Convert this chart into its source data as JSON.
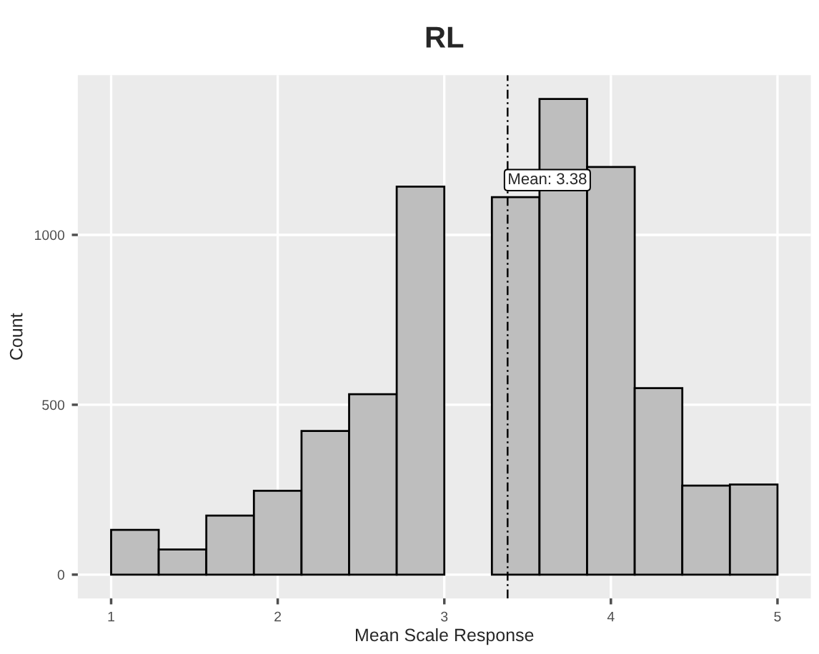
{
  "chart_data": {
    "type": "histogram",
    "title": "RL",
    "xlabel": "Mean Scale Response",
    "ylabel": "Count",
    "bins": [
      1,
      1.2857,
      1.5714,
      1.8571,
      2.1429,
      2.4286,
      2.7143,
      3,
      3.2857,
      3.5714,
      3.8571,
      4.1429,
      4.4286,
      4.7143,
      5
    ],
    "values": [
      132,
      74,
      174,
      247,
      423,
      531,
      1142,
      0,
      1111,
      1400,
      1200,
      549,
      262,
      265
    ],
    "color": "#bebebe",
    "xlim": [
      0.8,
      5.2
    ],
    "ylim": [
      -70,
      1470
    ],
    "xticks": [
      1,
      2,
      3,
      4,
      5
    ],
    "yticks": [
      0,
      500,
      1000
    ],
    "grid": true,
    "ref_lines": [
      {
        "axis": "x",
        "value": 3.38,
        "label": "Mean: 3.38",
        "line_style": "dashed",
        "color": "#000000"
      }
    ]
  }
}
